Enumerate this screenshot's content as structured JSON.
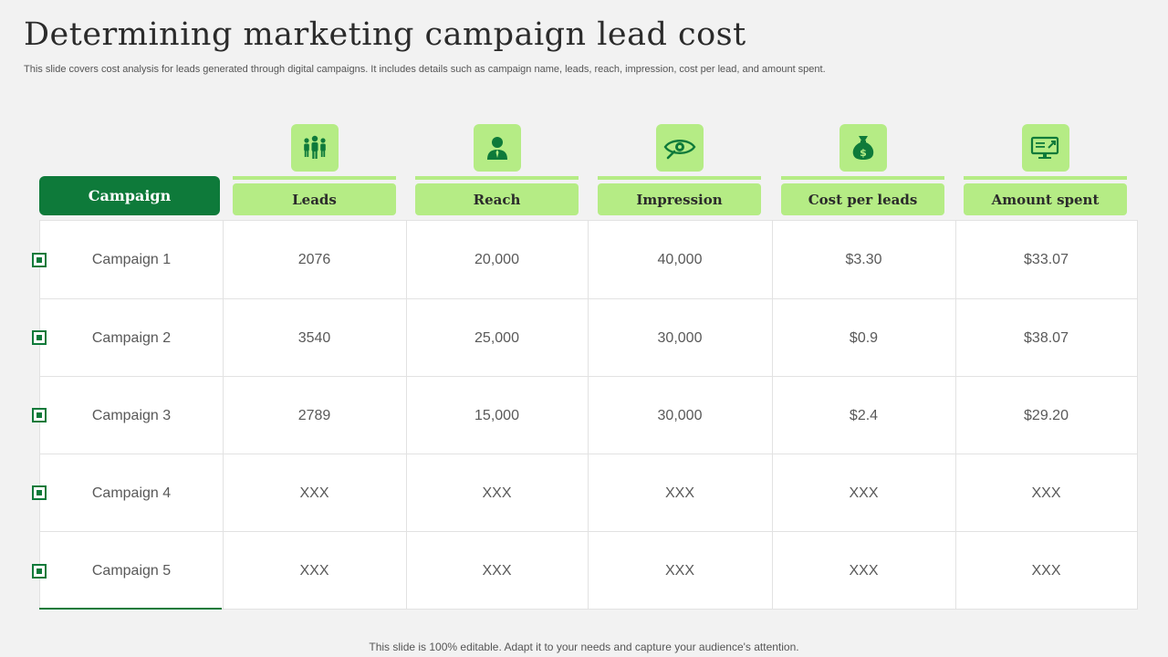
{
  "title": "Determining marketing campaign lead cost",
  "subtitle": "This slide covers cost analysis for leads generated through digital campaigns. It includes details such as campaign name, leads, reach, impression, cost per lead, and amount spent.",
  "footer": "This slide is 100% editable. Adapt it to your needs and capture your audience's attention.",
  "colors": {
    "accent": "#0e7a3a",
    "light_accent": "#b5ec85"
  },
  "table": {
    "first_header": "Campaign",
    "columns": [
      {
        "label": "Leads",
        "icon": "people-icon"
      },
      {
        "label": "Reach",
        "icon": "user-icon"
      },
      {
        "label": "Impression",
        "icon": "eye-icon"
      },
      {
        "label": "Cost per leads",
        "icon": "money-bag-icon"
      },
      {
        "label": "Amount spent",
        "icon": "monitor-icon"
      }
    ],
    "rows": [
      {
        "name": "Campaign 1",
        "values": [
          "2076",
          "20,000",
          "40,000",
          "$3.30",
          "$33.07"
        ]
      },
      {
        "name": "Campaign 2",
        "values": [
          "3540",
          "25,000",
          "30,000",
          "$0.9",
          "$38.07"
        ]
      },
      {
        "name": "Campaign 3",
        "values": [
          "2789",
          "15,000",
          "30,000",
          "$2.4",
          "$29.20"
        ]
      },
      {
        "name": "Campaign 4",
        "values": [
          "XXX",
          "XXX",
          "XXX",
          "XXX",
          "XXX"
        ]
      },
      {
        "name": "Campaign 5",
        "values": [
          "XXX",
          "XXX",
          "XXX",
          "XXX",
          "XXX"
        ]
      }
    ]
  }
}
